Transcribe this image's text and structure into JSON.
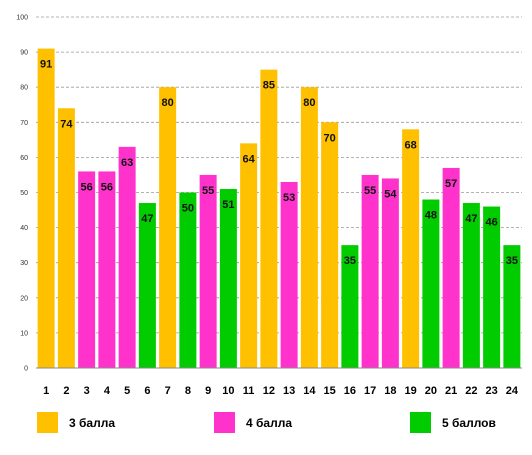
{
  "chart_data": {
    "type": "bar",
    "title": "",
    "xlabel": "",
    "ylabel": "",
    "ylim": [
      0,
      100
    ],
    "yticks": [
      0,
      10,
      20,
      30,
      40,
      50,
      60,
      70,
      80,
      90,
      100
    ],
    "grid": "horizontal-dashed",
    "categories": [
      "1",
      "2",
      "3",
      "4",
      "5",
      "6",
      "7",
      "8",
      "9",
      "10",
      "11",
      "12",
      "13",
      "14",
      "15",
      "16",
      "17",
      "18",
      "19",
      "20",
      "21",
      "22",
      "23",
      "24"
    ],
    "values": [
      91,
      74,
      56,
      56,
      63,
      47,
      80,
      50,
      55,
      51,
      64,
      85,
      53,
      80,
      70,
      35,
      55,
      54,
      68,
      48,
      57,
      47,
      46,
      35
    ],
    "value_labels": [
      "91",
      "74",
      "56",
      "56",
      "63",
      "47",
      "80",
      "50",
      "55",
      "51",
      "64",
      "85",
      "53",
      "80",
      "70",
      "35",
      "55",
      "54",
      "68",
      "48",
      "57",
      "47",
      "46",
      "35"
    ],
    "groups": [
      0,
      0,
      1,
      1,
      1,
      2,
      0,
      2,
      1,
      2,
      0,
      0,
      1,
      0,
      0,
      2,
      1,
      1,
      0,
      2,
      1,
      2,
      2,
      2
    ],
    "legend_position": "bottom",
    "legend": [
      {
        "label": "3 балла",
        "color": "#ffc000"
      },
      {
        "label": "4 балла",
        "color": "#ff33cc"
      },
      {
        "label": "5 баллов",
        "color": "#00cc00"
      }
    ]
  }
}
